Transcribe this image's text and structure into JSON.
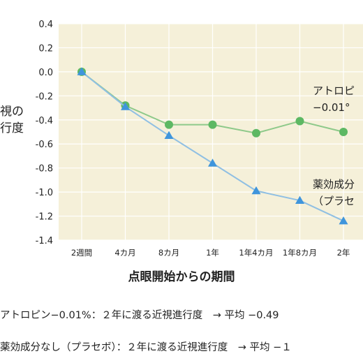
{
  "chart_data": {
    "type": "line",
    "categories": [
      "2週間",
      "4カ月",
      "8カ月",
      "1年",
      "1年4カ月",
      "1年8カ月",
      "2年"
    ],
    "xlabel": "点眼開始からの期間",
    "ylabel_lines": [
      "視の",
      "行度"
    ],
    "yticks": [
      "0.4",
      "0.2",
      "0.0",
      "-0.2",
      "-0.4",
      "-0.6",
      "-0.8",
      "-1.0",
      "-1.2",
      "-1.4"
    ],
    "ylim": [
      -1.4,
      0.4
    ],
    "grid": true,
    "series": [
      {
        "name": "アトロピ",
        "name_line2": "−0.01°",
        "values": [
          0.0,
          -0.28,
          -0.44,
          -0.44,
          -0.51,
          -0.41,
          -0.5
        ],
        "color": "#8ec98a",
        "marker_color": "#5db863",
        "marker": "circle"
      },
      {
        "name": "薬効成分",
        "name_line2": "（プラセ",
        "values": [
          0.0,
          -0.29,
          -0.53,
          -0.76,
          -0.99,
          -1.07,
          -1.24
        ],
        "color": "#8fbfe3",
        "marker_color": "#3f95dc",
        "marker": "triangle"
      }
    ],
    "plot_bg": "#f5f0d9"
  },
  "notes": [
    "アトロピン−0.01%：２年に渡る近視進行度　→ 平均 −0.49",
    "薬効成分なし（プラセボ）：２年に渡る近視進行度　→ 平均 −１"
  ]
}
